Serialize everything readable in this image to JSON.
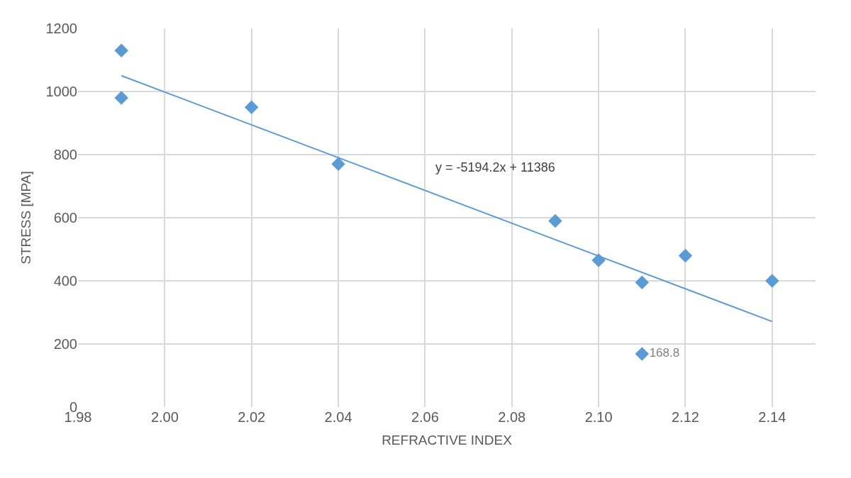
{
  "chart_data": {
    "type": "scatter",
    "xlabel": "REFRACTIVE INDEX",
    "ylabel": "STRESS [MPA]",
    "xlim": [
      1.98,
      2.15
    ],
    "xticks": [
      1.98,
      {
        "value": 2.0,
        "label": "2.00"
      },
      2.02,
      2.04,
      2.06,
      2.08,
      {
        "value": 2.1,
        "label": "2.10"
      },
      2.12,
      2.14
    ],
    "ylim": [
      0,
      1200
    ],
    "yticks": [
      0,
      200,
      400,
      600,
      800,
      1000,
      1200
    ],
    "grid": true,
    "marker": "diamond",
    "series": [
      {
        "color": "#5b9bd5",
        "x": [
          1.99,
          1.99,
          2.02,
          2.04,
          2.09,
          2.1,
          2.11,
          2.12,
          2.14,
          2.11
        ],
        "values": [
          1130,
          980,
          950,
          770,
          590,
          465,
          395,
          480,
          400,
          168.8
        ],
        "value_labels": [
          null,
          null,
          null,
          null,
          null,
          null,
          null,
          null,
          null,
          "168.8"
        ]
      },
      {
        "type": "line",
        "color": "#5b9bd5",
        "marker": "none",
        "x": [
          1.99,
          2.14
        ],
        "values": [
          1050,
          271
        ]
      }
    ],
    "annotations": [
      "y = -5194.2x + 11386"
    ]
  }
}
